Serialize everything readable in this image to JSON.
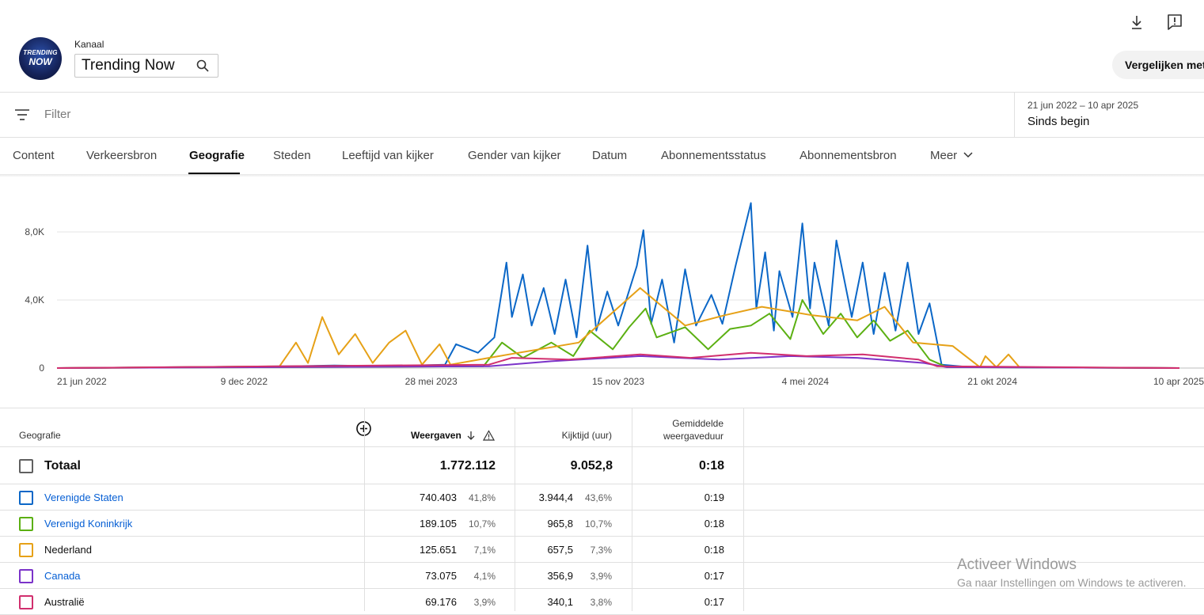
{
  "header": {
    "avatar_line1": "TRENDING",
    "avatar_line2": "NOW",
    "channel_label": "Kanaal",
    "channel_name": "Trending Now",
    "compare_label": "Vergelijken met..."
  },
  "filter": {
    "placeholder": "Filter"
  },
  "date": {
    "range": "21 jun 2022 – 10 apr 2025",
    "period": "Sinds begin"
  },
  "tabs": [
    {
      "label": "Content"
    },
    {
      "label": "Verkeersbron"
    },
    {
      "label": "Geografie",
      "active": true
    },
    {
      "label": "Steden"
    },
    {
      "label": "Leeftijd van kijker"
    },
    {
      "label": "Gender van kijker"
    },
    {
      "label": "Datum"
    },
    {
      "label": "Abonnementsstatus"
    },
    {
      "label": "Abonnementsbron"
    },
    {
      "label": "Meer"
    }
  ],
  "chart_data": {
    "type": "line",
    "y_ticks": [
      "0",
      "4,0K",
      "8,0K"
    ],
    "ylim": [
      0,
      10000
    ],
    "x_ticks": [
      "21 jun 2022",
      "9 dec 2022",
      "28 mei 2023",
      "15 nov 2023",
      "4 mei 2024",
      "21 okt 2024",
      "10 apr 2025"
    ],
    "x_start": "2022-06-21",
    "x_end": "2025-04-10",
    "series": [
      {
        "name": "Verenigde Staten",
        "color": "#0b67c7",
        "points": [
          [
            "2023-01-20",
            100
          ],
          [
            "2023-03-01",
            150
          ],
          [
            "2023-04-20",
            100
          ],
          [
            "2023-06-10",
            200
          ],
          [
            "2023-06-20",
            1400
          ],
          [
            "2023-07-10",
            900
          ],
          [
            "2023-07-25",
            1800
          ],
          [
            "2023-08-05",
            6200
          ],
          [
            "2023-08-10",
            3000
          ],
          [
            "2023-08-20",
            5500
          ],
          [
            "2023-08-28",
            2500
          ],
          [
            "2023-09-08",
            4700
          ],
          [
            "2023-09-18",
            2000
          ],
          [
            "2023-09-28",
            5200
          ],
          [
            "2023-10-08",
            1800
          ],
          [
            "2023-10-18",
            7200
          ],
          [
            "2023-10-26",
            2200
          ],
          [
            "2023-11-05",
            4500
          ],
          [
            "2023-11-15",
            2500
          ],
          [
            "2023-12-02",
            6000
          ],
          [
            "2023-12-08",
            8100
          ],
          [
            "2023-12-15",
            2600
          ],
          [
            "2023-12-25",
            5200
          ],
          [
            "2024-01-05",
            1500
          ],
          [
            "2024-01-15",
            5800
          ],
          [
            "2024-01-25",
            2500
          ],
          [
            "2024-02-08",
            4300
          ],
          [
            "2024-02-18",
            2600
          ],
          [
            "2024-03-01",
            6000
          ],
          [
            "2024-03-15",
            9700
          ],
          [
            "2024-03-20",
            3500
          ],
          [
            "2024-03-28",
            6800
          ],
          [
            "2024-04-05",
            2200
          ],
          [
            "2024-04-10",
            5700
          ],
          [
            "2024-04-22",
            3000
          ],
          [
            "2024-05-01",
            8500
          ],
          [
            "2024-05-08",
            3500
          ],
          [
            "2024-05-12",
            6200
          ],
          [
            "2024-05-25",
            2500
          ],
          [
            "2024-06-01",
            7500
          ],
          [
            "2024-06-15",
            3000
          ],
          [
            "2024-06-25",
            6200
          ],
          [
            "2024-07-05",
            2000
          ],
          [
            "2024-07-15",
            5600
          ],
          [
            "2024-07-25",
            2200
          ],
          [
            "2024-08-05",
            6200
          ],
          [
            "2024-08-15",
            2000
          ],
          [
            "2024-08-25",
            3800
          ],
          [
            "2024-09-05",
            200
          ],
          [
            "2024-10-01",
            50
          ]
        ]
      },
      {
        "name": "Verenigd Koninkrijk",
        "color": "#5bb012",
        "points": [
          [
            "2023-07-15",
            100
          ],
          [
            "2023-08-01",
            1500
          ],
          [
            "2023-08-20",
            600
          ],
          [
            "2023-09-15",
            1500
          ],
          [
            "2023-10-05",
            700
          ],
          [
            "2023-10-20",
            2200
          ],
          [
            "2023-11-10",
            1100
          ],
          [
            "2023-11-25",
            2400
          ],
          [
            "2023-12-10",
            3500
          ],
          [
            "2023-12-20",
            1800
          ],
          [
            "2024-01-15",
            2400
          ],
          [
            "2024-02-05",
            1100
          ],
          [
            "2024-02-25",
            2300
          ],
          [
            "2024-03-15",
            2500
          ],
          [
            "2024-04-01",
            3200
          ],
          [
            "2024-04-20",
            1700
          ],
          [
            "2024-05-01",
            4000
          ],
          [
            "2024-05-20",
            2000
          ],
          [
            "2024-06-05",
            3200
          ],
          [
            "2024-06-20",
            1800
          ],
          [
            "2024-07-05",
            2800
          ],
          [
            "2024-07-20",
            1600
          ],
          [
            "2024-08-05",
            2200
          ],
          [
            "2024-08-25",
            500
          ],
          [
            "2024-09-10",
            50
          ]
        ]
      },
      {
        "name": "Nederland",
        "color": "#e6a117",
        "points": [
          [
            "2023-01-10",
            100
          ],
          [
            "2023-01-25",
            1500
          ],
          [
            "2023-02-05",
            300
          ],
          [
            "2023-02-18",
            3000
          ],
          [
            "2023-03-05",
            800
          ],
          [
            "2023-03-20",
            2000
          ],
          [
            "2023-04-05",
            300
          ],
          [
            "2023-04-20",
            1500
          ],
          [
            "2023-05-05",
            2200
          ],
          [
            "2023-05-20",
            200
          ],
          [
            "2023-06-05",
            1400
          ],
          [
            "2023-06-15",
            200
          ],
          [
            "2023-07-20",
            600
          ],
          [
            "2023-10-10",
            1500
          ],
          [
            "2023-12-05",
            4700
          ],
          [
            "2024-01-15",
            2500
          ],
          [
            "2024-02-20",
            3100
          ],
          [
            "2024-03-25",
            3600
          ],
          [
            "2024-05-10",
            3100
          ],
          [
            "2024-06-20",
            2800
          ],
          [
            "2024-07-15",
            3600
          ],
          [
            "2024-08-10",
            1500
          ],
          [
            "2024-09-15",
            1300
          ],
          [
            "2024-10-10",
            50
          ],
          [
            "2024-10-15",
            700
          ],
          [
            "2024-10-25",
            50
          ],
          [
            "2024-11-05",
            800
          ],
          [
            "2024-11-15",
            50
          ]
        ]
      },
      {
        "name": "Canada",
        "color": "#7b33c9",
        "points": [
          [
            "2023-07-20",
            100
          ],
          [
            "2023-09-15",
            400
          ],
          [
            "2023-12-05",
            700
          ],
          [
            "2024-02-15",
            500
          ],
          [
            "2024-04-20",
            700
          ],
          [
            "2024-06-20",
            600
          ],
          [
            "2024-08-20",
            300
          ],
          [
            "2024-09-10",
            50
          ]
        ]
      },
      {
        "name": "Australië",
        "color": "#d12f6e",
        "points": [
          [
            "2023-07-20",
            200
          ],
          [
            "2023-08-10",
            600
          ],
          [
            "2023-10-01",
            500
          ],
          [
            "2023-12-05",
            800
          ],
          [
            "2024-01-20",
            600
          ],
          [
            "2024-03-15",
            900
          ],
          [
            "2024-05-05",
            700
          ],
          [
            "2024-06-25",
            800
          ],
          [
            "2024-08-15",
            500
          ],
          [
            "2024-09-01",
            100
          ]
        ]
      }
    ]
  },
  "table": {
    "header": {
      "dimension": "Geografie",
      "views": "Weergaven",
      "watchtime": "Kijktijd (uur)",
      "avg_duration_line1": "Gemiddelde",
      "avg_duration_line2": "weergaveduur"
    },
    "total": {
      "label": "Totaal",
      "views": "1.772.112",
      "watchtime": "9.052,8",
      "avg": "0:18"
    },
    "rows": [
      {
        "name": "Verenigde Staten",
        "link": true,
        "color": "#0b67c7",
        "views": "740.403",
        "views_pct": "41,8%",
        "watch": "3.944,4",
        "watch_pct": "43,6%",
        "avg": "0:19"
      },
      {
        "name": "Verenigd Koninkrijk",
        "link": true,
        "color": "#5bb012",
        "views": "189.105",
        "views_pct": "10,7%",
        "watch": "965,8",
        "watch_pct": "10,7%",
        "avg": "0:18"
      },
      {
        "name": "Nederland",
        "link": false,
        "color": "#e6a117",
        "views": "125.651",
        "views_pct": "7,1%",
        "watch": "657,5",
        "watch_pct": "7,3%",
        "avg": "0:18"
      },
      {
        "name": "Canada",
        "link": true,
        "color": "#7b33c9",
        "views": "73.075",
        "views_pct": "4,1%",
        "watch": "356,9",
        "watch_pct": "3,9%",
        "avg": "0:17"
      },
      {
        "name": "Australië",
        "link": false,
        "color": "#d12f6e",
        "views": "69.176",
        "views_pct": "3,9%",
        "watch": "340,1",
        "watch_pct": "3,8%",
        "avg": "0:17"
      }
    ]
  },
  "watermark": {
    "line1": "Activeer Windows",
    "line2": "Ga naar Instellingen om Windows te activeren."
  }
}
